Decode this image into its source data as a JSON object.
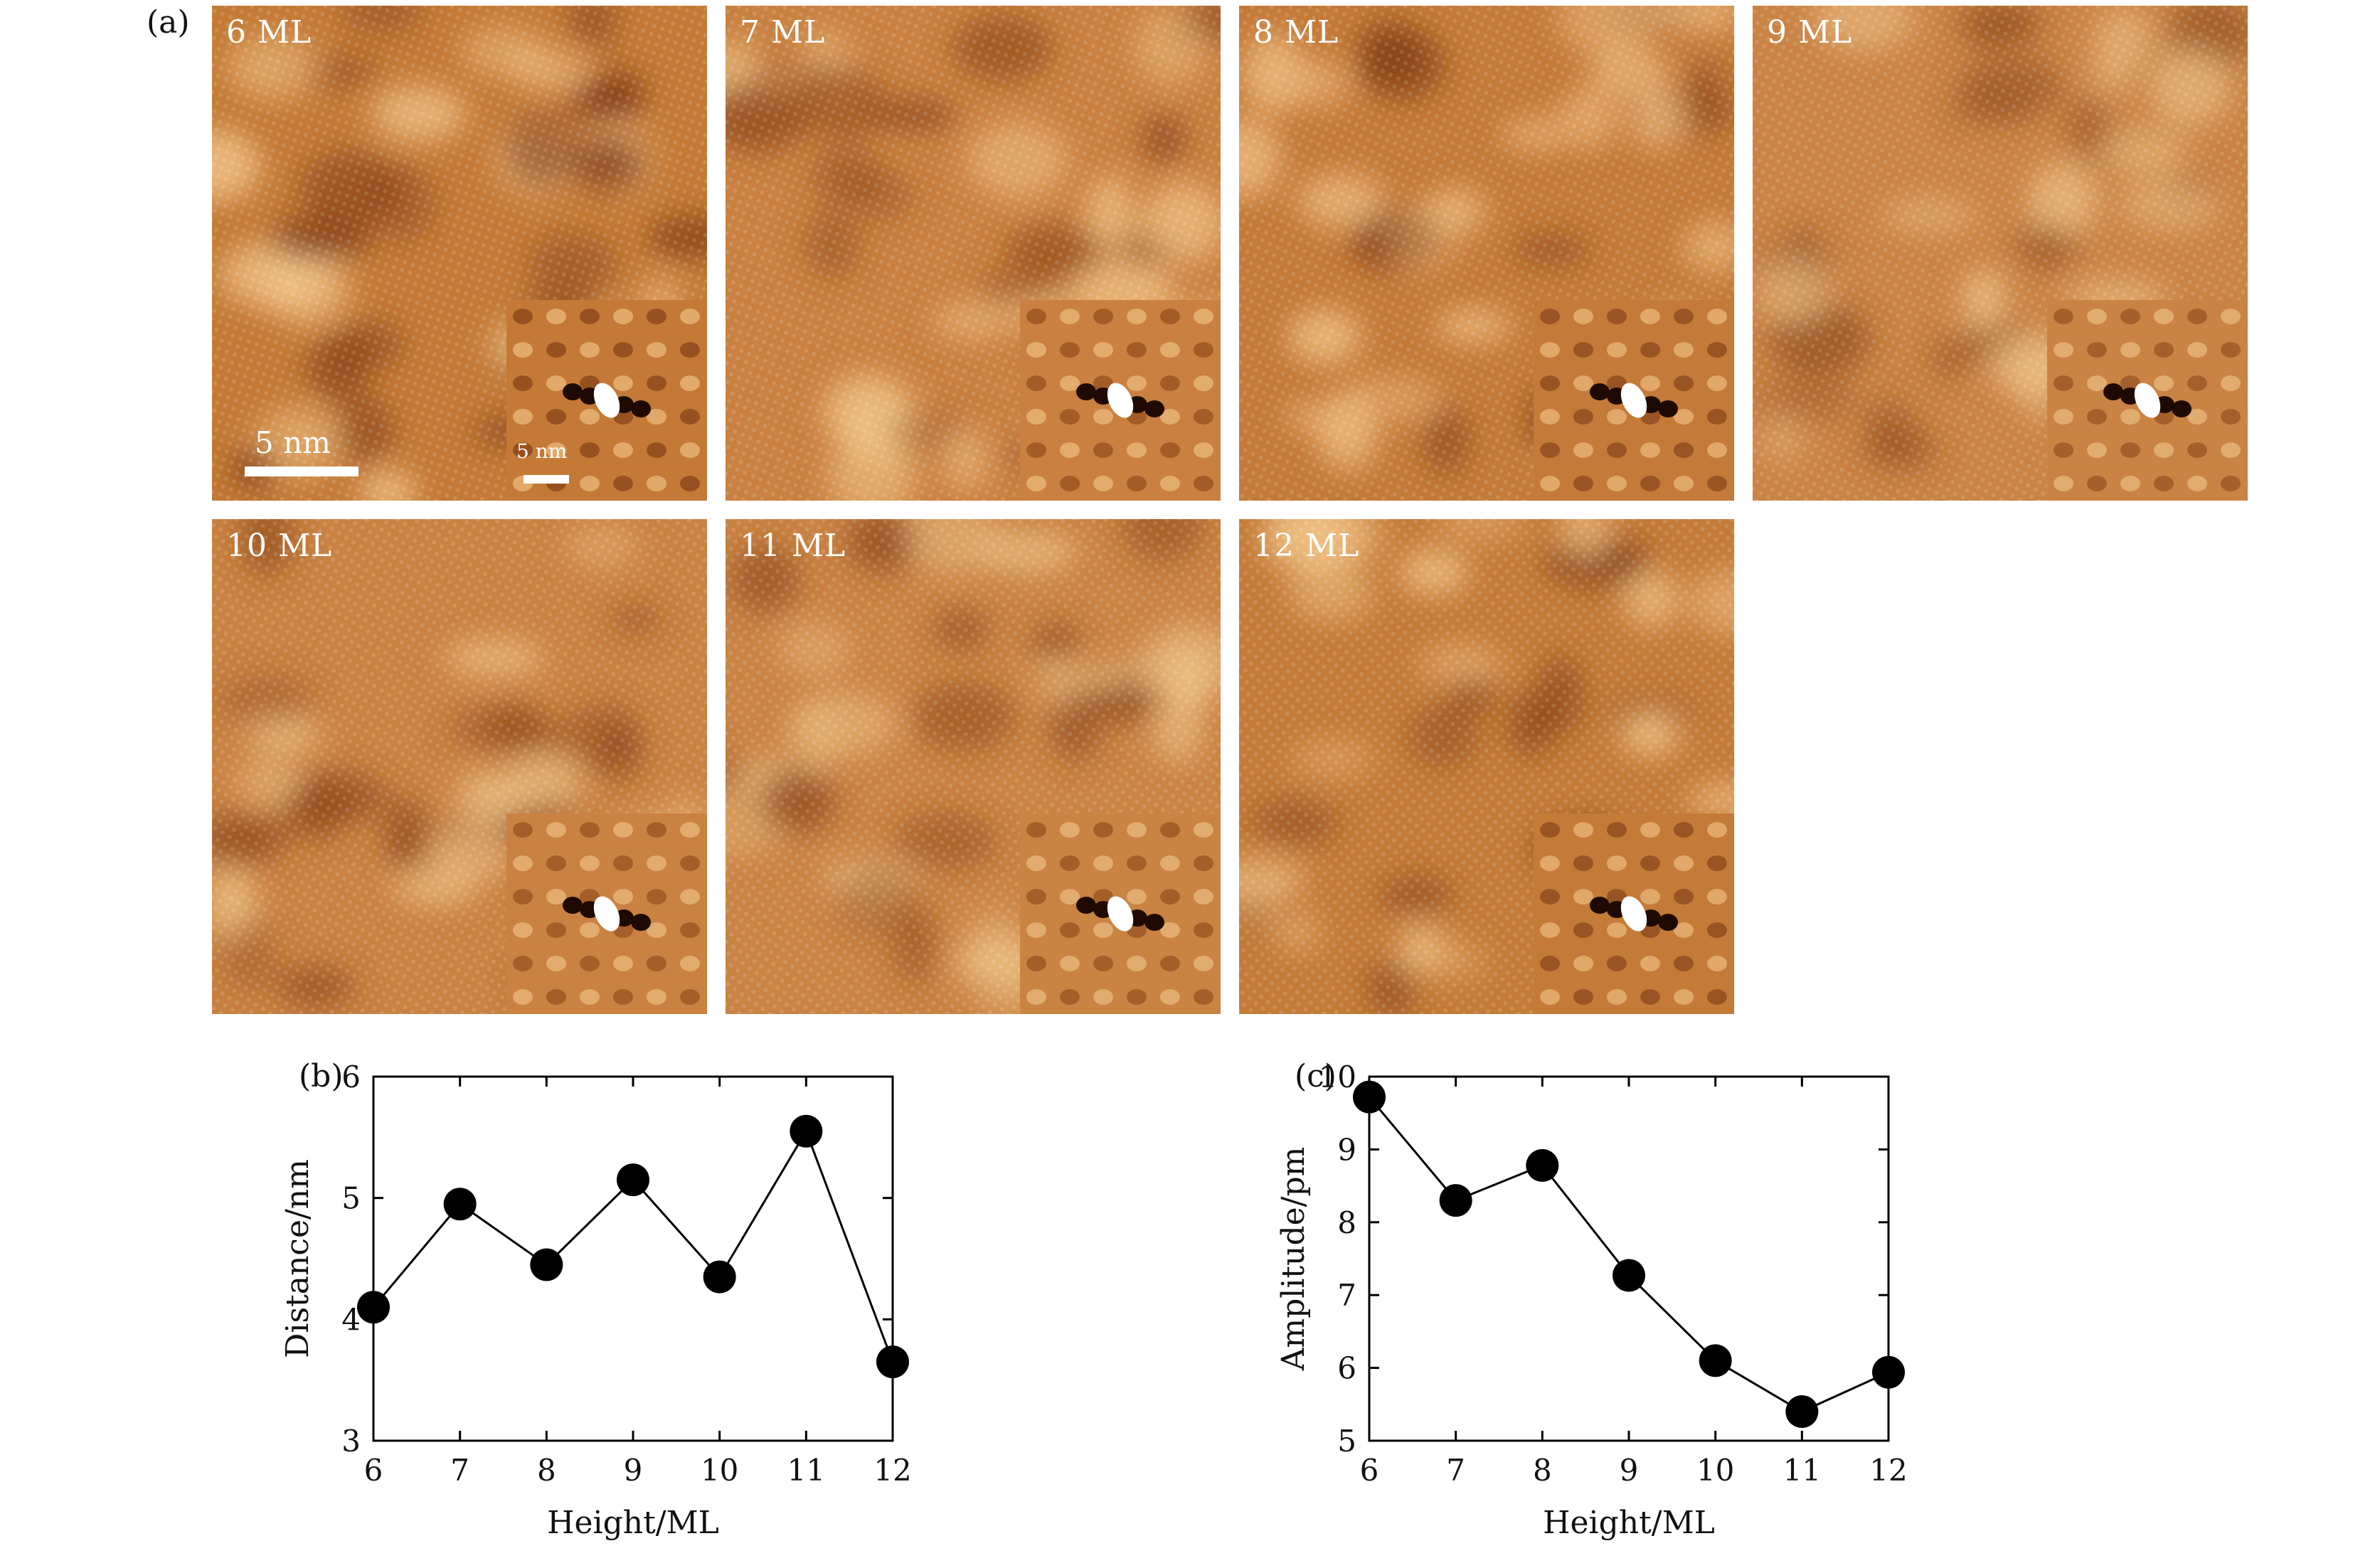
{
  "panel_a": {
    "letter": "(a)",
    "tiles": [
      {
        "label": "6 ML",
        "hue": "#c47a36",
        "light": "#f5c98f",
        "dark": "#7a3612"
      },
      {
        "label": "7 ML",
        "hue": "#c98040",
        "light": "#f4c98c",
        "dark": "#8a4418"
      },
      {
        "label": "8 ML",
        "hue": "#c47a38",
        "light": "#f3c68a",
        "dark": "#7c3a14"
      },
      {
        "label": "9 ML",
        "hue": "#c98344",
        "light": "#f2c88e",
        "dark": "#8c4a1c"
      },
      {
        "label": "10 ML",
        "hue": "#c98242",
        "light": "#f3c88c",
        "dark": "#8a4619"
      },
      {
        "label": "11 ML",
        "hue": "#c98343",
        "light": "#f2c88d",
        "dark": "#8a471a"
      },
      {
        "label": "12 ML",
        "hue": "#c47b38",
        "light": "#f3c78b",
        "dark": "#7c3b14"
      }
    ],
    "scalebar_main": "5 nm",
    "scalebar_inset": "5 nm"
  },
  "chart_data": [
    {
      "panel": "(b)",
      "type": "line",
      "x": [
        6,
        7,
        8,
        9,
        10,
        11,
        12
      ],
      "y": [
        4.1,
        4.95,
        4.45,
        5.15,
        4.35,
        5.55,
        3.65
      ],
      "xlabel": "Height/ML",
      "ylabel": "Distance/nm",
      "xlim": [
        6,
        12
      ],
      "ylim": [
        3,
        6
      ],
      "xticks": [
        6,
        7,
        8,
        9,
        10,
        11,
        12
      ],
      "yticks": [
        3,
        4,
        5,
        6
      ],
      "grid": false,
      "marker": "filled-circle",
      "color": "#000000"
    },
    {
      "panel": "(c)",
      "type": "line",
      "x": [
        6,
        7,
        8,
        9,
        10,
        11,
        12
      ],
      "y": [
        9.72,
        8.3,
        8.78,
        7.27,
        6.1,
        5.4,
        5.94
      ],
      "xlabel": "Height/ML",
      "ylabel": "Amplitude/pm",
      "xlim": [
        6,
        12
      ],
      "ylim": [
        5,
        10
      ],
      "xticks": [
        6,
        7,
        8,
        9,
        10,
        11,
        12
      ],
      "yticks": [
        5,
        6,
        7,
        8,
        9,
        10
      ],
      "grid": false,
      "marker": "filled-circle",
      "color": "#000000"
    }
  ]
}
